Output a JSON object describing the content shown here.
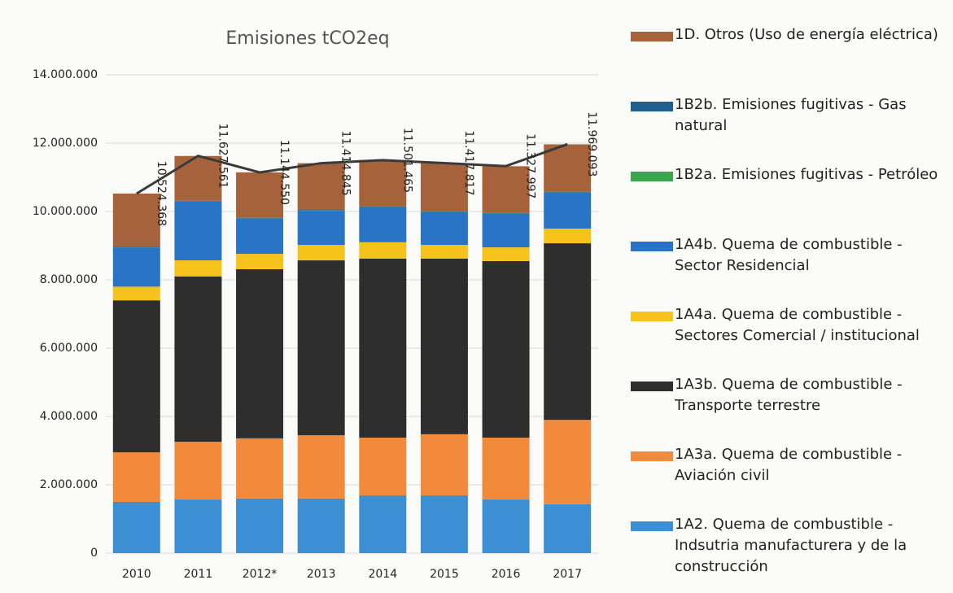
{
  "chart_data": {
    "type": "stacked-bar",
    "title": "Emisiones tCO2eq",
    "categories": [
      "2010",
      "2011",
      "2012*",
      "2013",
      "2014",
      "2015",
      "2016",
      "2017"
    ],
    "series": [
      {
        "name": "1A2. Quema de combustible - Indsutria manufacturera y de la construcción",
        "color": "#3d8fd3",
        "values": [
          1500000,
          1570000,
          1600000,
          1600000,
          1690000,
          1690000,
          1570000,
          1430000
        ]
      },
      {
        "name": "1A3a. Quema de combustible - Aviación civil",
        "color": "#f28a3c",
        "values": [
          1450000,
          1690000,
          1760000,
          1850000,
          1690000,
          1790000,
          1810000,
          2470000
        ]
      },
      {
        "name": "1A3b. Quema de combustible - Transporte terrestre",
        "color": "#2e2e2e",
        "values": [
          4450000,
          4840000,
          4950000,
          5120000,
          5240000,
          5140000,
          5170000,
          5170000
        ]
      },
      {
        "name": "1A4a. Quema de combustible - Sectores Comercial / institucional",
        "color": "#f6c21c",
        "values": [
          400000,
          470000,
          450000,
          450000,
          480000,
          400000,
          400000,
          430000
        ]
      },
      {
        "name": "1A4b. Quema de combustible - Sector Residencial",
        "color": "#2a74c6",
        "values": [
          1150000,
          1720000,
          1030000,
          1000000,
          1020000,
          960000,
          980000,
          1050000
        ]
      },
      {
        "name": "1B2a. Emisiones fugitivas - Petróleo",
        "color": "#3aa64a",
        "values": [
          5000,
          5000,
          5000,
          5000,
          5000,
          5000,
          5000,
          5000
        ]
      },
      {
        "name": "1B2b. Emisiones fugitivas - Gas natural",
        "color": "#1f5f8f",
        "values": [
          20000,
          20000,
          20000,
          20000,
          20000,
          20000,
          20000,
          20000
        ]
      },
      {
        "name": "1D. Otros (Uso de energía eléctrica)",
        "color": "#a5623b",
        "values": [
          1550000,
          1310000,
          1330000,
          1370000,
          1360000,
          1410000,
          1370000,
          1390000
        ]
      }
    ],
    "total_values": [
      10524368,
      11627561,
      11144550,
      11414845,
      11501465,
      11417817,
      11327997,
      11969093
    ],
    "total_value_labels": [
      "10.524.368",
      "11.627.561",
      "11.144.550",
      "11.414.845",
      "11.501.465",
      "11.417.817",
      "11.327.997",
      "11.969.093"
    ],
    "total_color": "#3a3a3a",
    "ylim": [
      0,
      14000000
    ],
    "yticks": [
      0,
      {
        "value": 2000000,
        "label": "2.000.000"
      },
      {
        "value": 4000000,
        "label": "4.000.000"
      },
      {
        "value": 6000000,
        "label": "6.000.000"
      },
      {
        "value": 8000000,
        "label": "8.000.000"
      },
      {
        "value": 10000000,
        "label": "10.000.000"
      },
      {
        "value": 12000000,
        "label": "12.000.000"
      },
      {
        "value": 14000000,
        "label": "14.000.000"
      }
    ],
    "grid": true
  }
}
